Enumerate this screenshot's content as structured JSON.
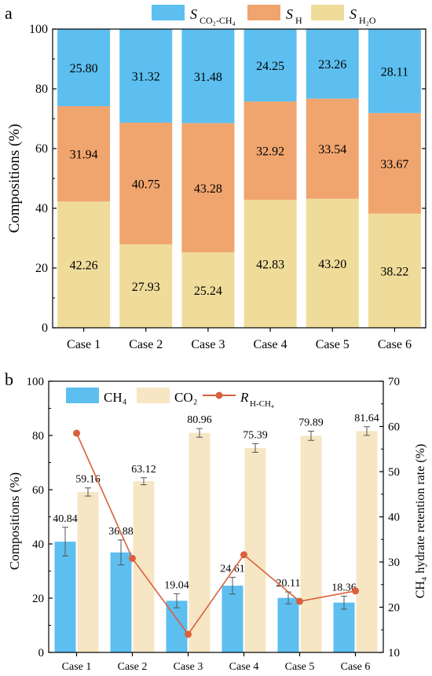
{
  "colors": {
    "blue": "#5CBFF0",
    "orange": "#F0A56E",
    "tan": "#F0DC9A",
    "tan_light": "#F7E6C4",
    "line": "#D9603B",
    "axis": "#000000"
  },
  "chart_data": [
    {
      "panel_label": "a",
      "type": "bar",
      "stacked": true,
      "categories": [
        "Case 1",
        "Case 2",
        "Case 3",
        "Case 4",
        "Case 5",
        "Case 6"
      ],
      "series": [
        {
          "name": "S_H2O",
          "values": [
            42.26,
            27.93,
            25.24,
            42.83,
            43.2,
            38.22
          ],
          "color": "#F0DC9A"
        },
        {
          "name": "S_H",
          "values": [
            31.94,
            40.75,
            43.28,
            32.92,
            33.54,
            33.67
          ],
          "color": "#F0A56E"
        },
        {
          "name": "S_CO2-CH4",
          "values": [
            25.8,
            31.32,
            31.48,
            24.25,
            23.26,
            28.11
          ],
          "color": "#5CBFF0"
        }
      ],
      "data_labels": {
        "S_H2O": [
          "42.26",
          "27.93",
          "25.24",
          "42.83",
          "43.20",
          "38.22"
        ],
        "S_H": [
          "31.94",
          "40.75",
          "43.28",
          "32.92",
          "33.54",
          "33.67"
        ],
        "S_CO2-CH4": [
          "25.80",
          "31.32",
          "31.48",
          "24.25",
          "23.26",
          "28.11"
        ]
      },
      "legend": [
        {
          "key": "S_CO2-CH4",
          "main": "S",
          "sub": "CO₂-CH₄",
          "color": "#5CBFF0"
        },
        {
          "key": "S_H",
          "main": "S",
          "sub": "H",
          "color": "#F0A56E"
        },
        {
          "key": "S_H2O",
          "main": "S",
          "sub": "H₂O",
          "color": "#F0DC9A"
        }
      ],
      "ylabel": "Compositions (%)",
      "ylim": [
        0,
        100
      ],
      "yticks": [
        0,
        20,
        40,
        60,
        80,
        100
      ],
      "legend_position": "top"
    },
    {
      "panel_label": "b",
      "type": "bar",
      "categories": [
        "Case 1",
        "Case 2",
        "Case 3",
        "Case 4",
        "Case 5",
        "Case 6"
      ],
      "series": [
        {
          "name": "CH₄",
          "values": [
            40.84,
            36.88,
            19.04,
            24.61,
            20.11,
            18.36
          ],
          "errors": [
            5.3,
            4.6,
            2.6,
            3.1,
            2.2,
            2.4
          ],
          "color": "#5CBFF0"
        },
        {
          "name": "CO₂",
          "values": [
            59.16,
            63.12,
            80.96,
            75.39,
            79.89,
            81.64
          ],
          "errors": [
            1.5,
            1.3,
            1.6,
            1.6,
            1.7,
            1.6
          ],
          "color": "#F7E6C4"
        }
      ],
      "line_series": {
        "name": "R_H-CH4",
        "axis": "right",
        "values": [
          58.5,
          30.8,
          14.0,
          31.6,
          21.3,
          23.6
        ],
        "color": "#D9603B"
      },
      "data_labels": {
        "CH4": [
          "40.84",
          "36.88",
          "19.04",
          "24.61",
          "20.11",
          "18.36"
        ],
        "CO2": [
          "59.16",
          "63.12",
          "80.96",
          "75.39",
          "79.89",
          "81.64"
        ]
      },
      "legend": [
        {
          "key": "CH4",
          "text": "CH₄",
          "color": "#5CBFF0"
        },
        {
          "key": "CO2",
          "text": "CO₂",
          "color": "#F7E6C4"
        },
        {
          "key": "R",
          "main": "R",
          "sub": "H-CH₄",
          "color": "#D9603B"
        }
      ],
      "ylabel": "Compositions (%)",
      "ylabel_right": "CH₄  hydrate retention rate (%)",
      "ylim": [
        0,
        100
      ],
      "yticks": [
        0,
        20,
        40,
        60,
        80,
        100
      ],
      "ylim_right": [
        10,
        70
      ],
      "yticks_right": [
        10,
        20,
        30,
        40,
        50,
        60,
        70
      ],
      "legend_position": "top"
    }
  ]
}
